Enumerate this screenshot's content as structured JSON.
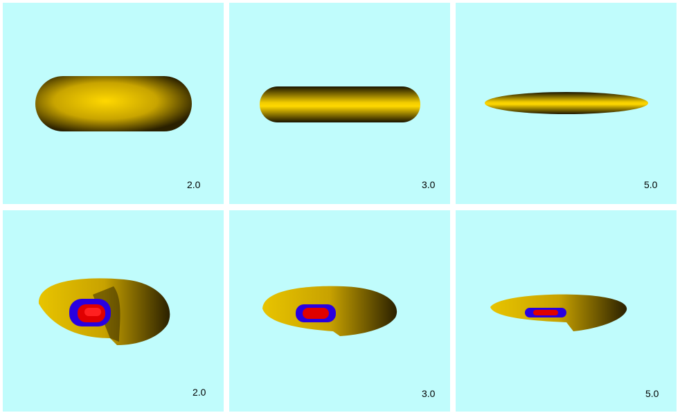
{
  "colors": {
    "background": "#c0fcfc",
    "outer_surface": "#f0d000",
    "middle_surface": "#2a00e0",
    "inner_surface": "#ff0000"
  },
  "panels": [
    {
      "row": "top",
      "label": "2.0",
      "view": "outer-surface"
    },
    {
      "row": "top",
      "label": "3.0",
      "view": "outer-surface"
    },
    {
      "row": "top",
      "label": "5.0",
      "view": "outer-surface"
    },
    {
      "row": "bottom",
      "label": "2.0",
      "view": "cutaway-nested-surfaces"
    },
    {
      "row": "bottom",
      "label": "3.0",
      "view": "cutaway-nested-surfaces"
    },
    {
      "row": "bottom",
      "label": "5.0",
      "view": "cutaway-nested-surfaces"
    }
  ]
}
